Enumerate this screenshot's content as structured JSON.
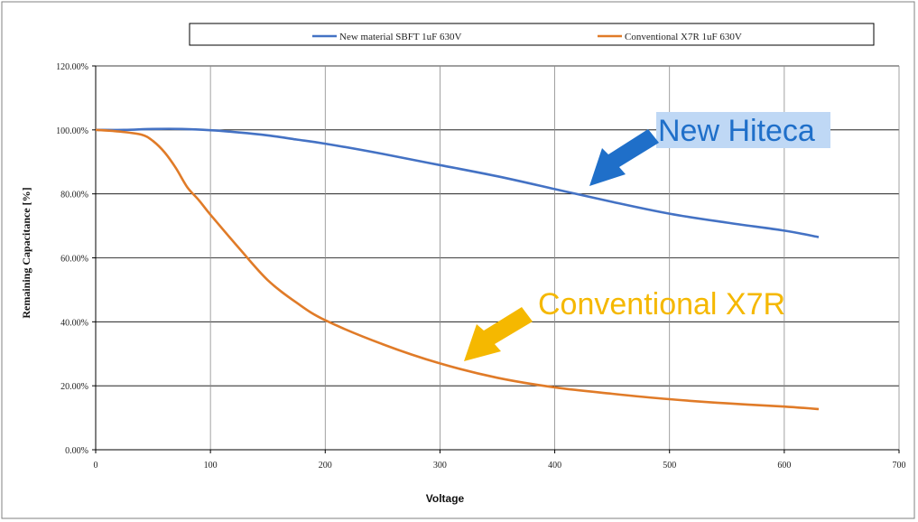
{
  "chart_data": {
    "type": "line",
    "title": "",
    "xlabel": "Voltage",
    "ylabel": "Remaining Capacitance [%]",
    "xlim": [
      0,
      700
    ],
    "ylim": [
      0,
      120
    ],
    "grid": true,
    "legend_position": "top",
    "x_ticks": [
      "0",
      "100",
      "200",
      "300",
      "400",
      "500",
      "600",
      "700"
    ],
    "y_ticks": [
      "0.00%",
      "20.00%",
      "40.00%",
      "60.00%",
      "80.00%",
      "100.00%",
      "120.00%"
    ],
    "series": [
      {
        "name": "New material SBFT 1uF 630V",
        "color": "#4472C4",
        "x": [
          0,
          25,
          50,
          75,
          100,
          125,
          150,
          175,
          200,
          250,
          300,
          350,
          400,
          450,
          500,
          550,
          600,
          630
        ],
        "y": [
          100,
          100,
          100.3,
          100.3,
          99.9,
          99.2,
          98.3,
          97.0,
          95.7,
          92.5,
          89.0,
          85.5,
          81.5,
          77.5,
          73.8,
          71.0,
          68.5,
          66.5
        ]
      },
      {
        "name": "Conventional X7R 1uF 630V",
        "color": "#E07B28",
        "x": [
          0,
          20,
          40,
          50,
          60,
          70,
          80,
          90,
          100,
          125,
          150,
          175,
          200,
          250,
          300,
          350,
          400,
          450,
          500,
          550,
          600,
          630
        ],
        "y": [
          100,
          99.5,
          98.5,
          96.5,
          93.0,
          88.0,
          82.0,
          78.0,
          73.5,
          63.0,
          53.0,
          46.0,
          40.5,
          33.0,
          27.0,
          22.5,
          19.5,
          17.5,
          15.8,
          14.5,
          13.5,
          12.7
        ]
      }
    ],
    "annotations": [
      {
        "text": "New Hiteca",
        "color": "#1F6FC9",
        "highlight": "#BFD8F5",
        "points_to": {
          "x": 420,
          "y": 81
        }
      },
      {
        "text": "Conventional X7R",
        "color": "#F5B800",
        "highlight": "",
        "points_to": {
          "x": 320,
          "y": 27
        }
      }
    ]
  }
}
